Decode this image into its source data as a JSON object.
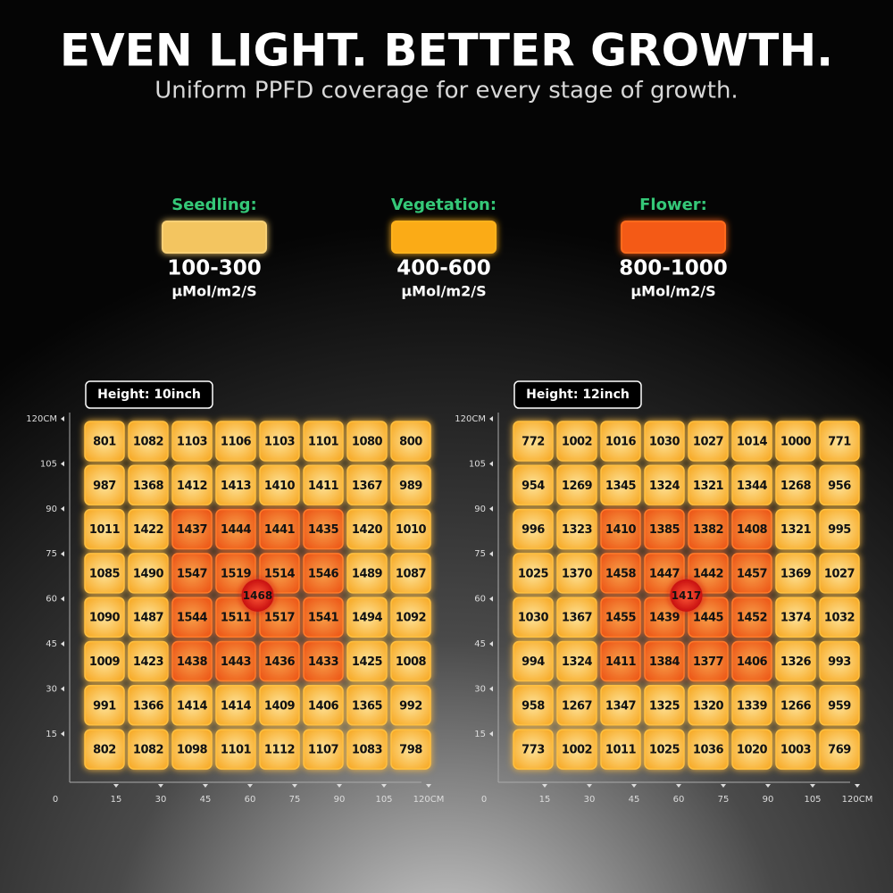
{
  "header": {
    "title": "EVEN LIGHT. BETTER GROWTH.",
    "subtitle": "Uniform PPFD coverage for every stage of growth."
  },
  "legend": [
    {
      "label": "Seedling:",
      "range": "100-300",
      "unit": "μMol/m2/S"
    },
    {
      "label": "Vegetation:",
      "range": "400-600",
      "unit": "μMol/m2/S"
    },
    {
      "label": "Flower:",
      "range": "800-1000",
      "unit": "μMol/m2/S"
    }
  ],
  "grids": [
    {
      "height_label": "Height: 10inch",
      "center_value": 1468,
      "origin": "0",
      "y_ticks": [
        "120CM",
        "105",
        "90",
        "75",
        "60",
        "45",
        "30",
        "15"
      ],
      "x_ticks": [
        "15",
        "30",
        "45",
        "60",
        "75",
        "90",
        "105",
        "120CM"
      ],
      "rows": [
        [
          801,
          1082,
          1103,
          1106,
          1103,
          1101,
          1080,
          800
        ],
        [
          987,
          1368,
          1412,
          1413,
          1410,
          1411,
          1367,
          989
        ],
        [
          1011,
          1422,
          1437,
          1444,
          1441,
          1435,
          1420,
          1010
        ],
        [
          1085,
          1490,
          1547,
          1519,
          1514,
          1546,
          1489,
          1087
        ],
        [
          1090,
          1487,
          1544,
          1511,
          1517,
          1541,
          1494,
          1092
        ],
        [
          1009,
          1423,
          1438,
          1443,
          1436,
          1433,
          1425,
          1008
        ],
        [
          991,
          1366,
          1414,
          1414,
          1409,
          1406,
          1365,
          992
        ],
        [
          802,
          1082,
          1098,
          1101,
          1112,
          1107,
          1083,
          798
        ]
      ]
    },
    {
      "height_label": "Height: 12inch",
      "center_value": 1417,
      "origin": "0",
      "y_ticks": [
        "120CM",
        "105",
        "90",
        "75",
        "60",
        "45",
        "30",
        "15"
      ],
      "x_ticks": [
        "15",
        "30",
        "45",
        "60",
        "75",
        "90",
        "105",
        "120CM"
      ],
      "rows": [
        [
          772,
          1002,
          1016,
          1030,
          1027,
          1014,
          1000,
          771
        ],
        [
          954,
          1269,
          1345,
          1324,
          1321,
          1344,
          1268,
          956
        ],
        [
          996,
          1323,
          1410,
          1385,
          1382,
          1408,
          1321,
          995
        ],
        [
          1025,
          1370,
          1458,
          1447,
          1442,
          1457,
          1369,
          1027
        ],
        [
          1030,
          1367,
          1455,
          1439,
          1445,
          1452,
          1374,
          1032
        ],
        [
          994,
          1324,
          1411,
          1384,
          1377,
          1406,
          1326,
          993
        ],
        [
          958,
          1267,
          1347,
          1325,
          1320,
          1339,
          1266,
          959
        ],
        [
          773,
          1002,
          1011,
          1025,
          1036,
          1020,
          1003,
          769
        ]
      ]
    }
  ]
}
